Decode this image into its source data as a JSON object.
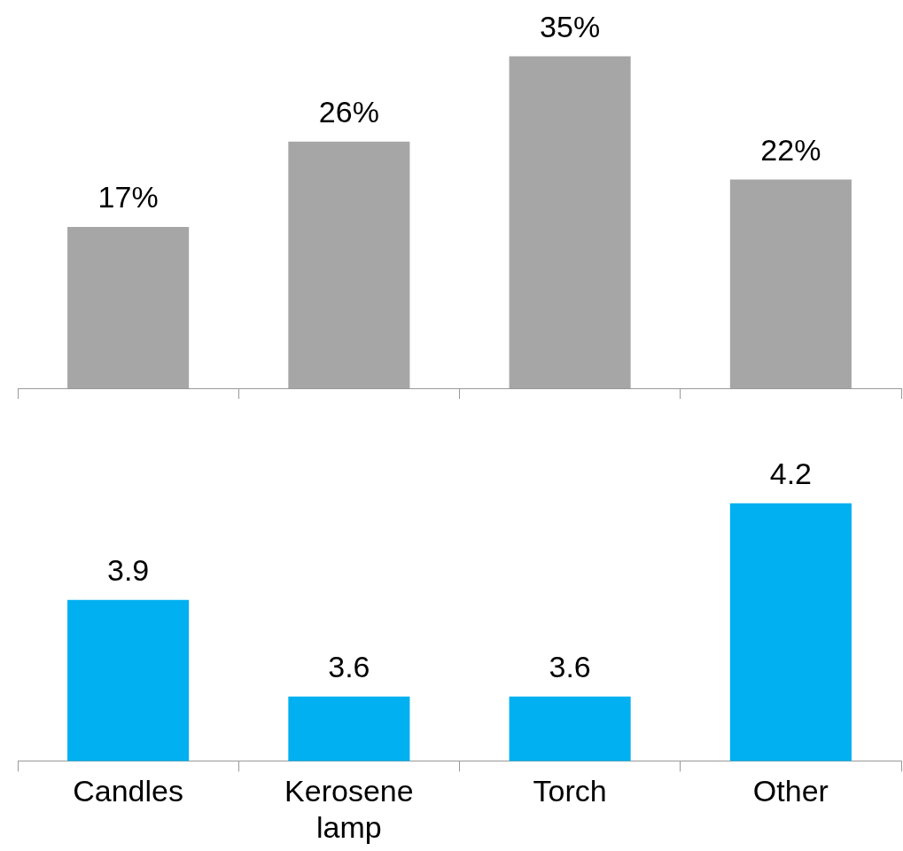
{
  "chart_data": [
    {
      "type": "bar",
      "categories": [
        null,
        null,
        null,
        null
      ],
      "values": [
        17,
        26,
        35,
        22
      ],
      "value_labels": [
        "17%",
        "26%",
        "35%",
        "22%"
      ],
      "color": "#a6a6a6",
      "tick_labels": false,
      "grid": false,
      "legend": false
    },
    {
      "type": "bar",
      "categories": [
        "Candles",
        "Kerosene lamp",
        "Torch",
        "Other"
      ],
      "values": [
        3.9,
        3.6,
        3.6,
        4.2
      ],
      "data_labels": true,
      "color": "#00b0f0",
      "tick_labels": "x",
      "grid": false,
      "legend": false
    }
  ]
}
